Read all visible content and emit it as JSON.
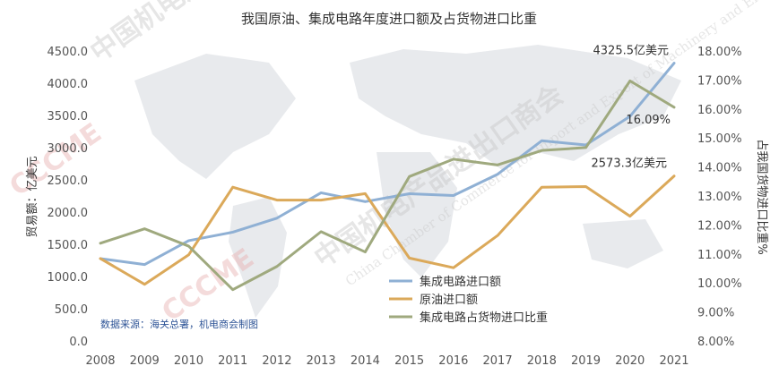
{
  "chart_data": {
    "type": "line",
    "title": "我国原油、集成电路年度进口额及占货物进口比重",
    "ylabel_left": "贸易额：亿美元",
    "ylabel_right": "占我国货物进口比重%",
    "categories": [
      "2008",
      "2009",
      "2010",
      "2011",
      "2012",
      "2013",
      "2014",
      "2015",
      "2016",
      "2017",
      "2018",
      "2019",
      "2020",
      "2021"
    ],
    "y_left_range": [
      0,
      4500
    ],
    "y_left_ticks": [
      "0.0",
      "500.0",
      "1000.0",
      "1500.0",
      "2000.0",
      "2500.0",
      "3000.0",
      "3500.0",
      "4000.0",
      "4500.0"
    ],
    "y_right_range": [
      8,
      18
    ],
    "y_right_ticks": [
      "8.00%",
      "9.00%",
      "10.00%",
      "11.00%",
      "12.00%",
      "13.00%",
      "14.00%",
      "15.00%",
      "16.00%",
      "17.00%",
      "18.00%"
    ],
    "series": [
      {
        "name": "集成电路进口额",
        "axis": "left",
        "color": "#8fb0d4",
        "values": [
          1292,
          1199,
          1570,
          1702,
          1920,
          2313,
          2176,
          2299,
          2271,
          2601,
          3121,
          3055,
          3500,
          4325.5
        ]
      },
      {
        "name": "原油进口额",
        "axis": "left",
        "color": "#dba95a",
        "values": [
          1293,
          893,
          1350,
          2400,
          2200,
          2200,
          2300,
          1300,
          1150,
          1650,
          2400,
          2410,
          1950,
          2573.3
        ]
      },
      {
        "name": "集成电路占货物进口比重",
        "axis": "right",
        "color": "#9fa97e",
        "values": [
          11.4,
          11.9,
          11.3,
          9.8,
          10.6,
          11.8,
          11.1,
          13.7,
          14.3,
          14.1,
          14.6,
          14.7,
          17.0,
          16.09
        ]
      }
    ],
    "annotations": [
      {
        "text": "4325.5亿美元",
        "series": 0,
        "index": 13
      },
      {
        "text": "2573.3亿美元",
        "series": 1,
        "index": 13
      },
      {
        "text": "16.09%",
        "series": 2,
        "index": 13
      }
    ],
    "legend_position": "lower-center",
    "source_note": "数据来源：海关总署，机电商会制图",
    "grid": false
  },
  "watermark": {
    "org_cn": "中国机电产品进出口商会",
    "org_en": "China Chamber of Commerce for Import and Export of Machinery and Electronic Products",
    "logo_text": "CCCME"
  },
  "colors": {
    "ic": "#8fb0d4",
    "oil": "#dba95a",
    "share": "#9fa97e",
    "map": "#e6e8eb"
  }
}
